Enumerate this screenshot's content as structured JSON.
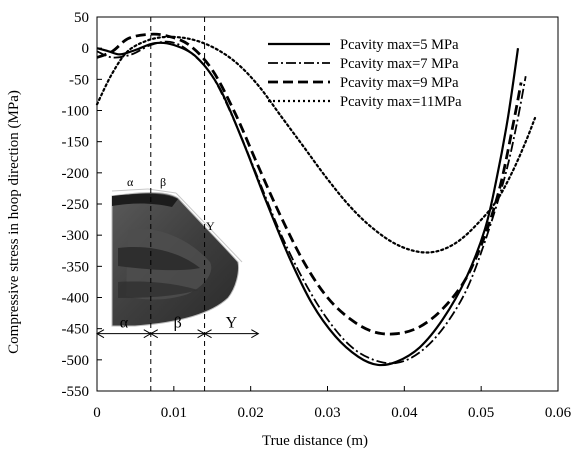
{
  "chart_data": {
    "type": "line",
    "xlabel": "True distance (m)",
    "ylabel": "Compressive stress in hoop direction (MPa)",
    "xlim": [
      0,
      0.06
    ],
    "ylim": [
      -550,
      50
    ],
    "x_ticks": [
      0,
      0.01,
      0.02,
      0.03,
      0.04,
      0.05,
      0.06
    ],
    "x_tick_labels": [
      "0",
      "0.01",
      "0.02",
      "0.03",
      "0.04",
      "0.05",
      "0.06"
    ],
    "y_ticks": [
      50,
      0,
      -50,
      -100,
      -150,
      -200,
      -250,
      -300,
      -350,
      -400,
      -450,
      -500,
      -550
    ],
    "y_tick_labels": [
      "50",
      "0",
      "-50",
      "-100",
      "-150",
      "-200",
      "-250",
      "-300",
      "-350",
      "-400",
      "-450",
      "-500",
      "-550"
    ],
    "grid": false,
    "legend_position": "top-right",
    "series": [
      {
        "name": "Pcavity max=5 MPa",
        "style": "solid",
        "points": [
          [
            0,
            0
          ],
          [
            0.0015,
            -5
          ],
          [
            0.003,
            -10
          ],
          [
            0.005,
            -3
          ],
          [
            0.0075,
            8
          ],
          [
            0.01,
            5
          ],
          [
            0.013,
            -15
          ],
          [
            0.016,
            -65
          ],
          [
            0.019,
            -150
          ],
          [
            0.022,
            -245
          ],
          [
            0.025,
            -335
          ],
          [
            0.028,
            -410
          ],
          [
            0.031,
            -462
          ],
          [
            0.034,
            -495
          ],
          [
            0.0365,
            -508
          ],
          [
            0.039,
            -503
          ],
          [
            0.042,
            -480
          ],
          [
            0.045,
            -435
          ],
          [
            0.048,
            -370
          ],
          [
            0.0505,
            -290
          ],
          [
            0.052,
            -210
          ],
          [
            0.0535,
            -110
          ],
          [
            0.0548,
            0
          ]
        ]
      },
      {
        "name": "Pcavity max=7 MPa",
        "style": "dash-dot",
        "points": [
          [
            0,
            -5
          ],
          [
            0.002,
            -15
          ],
          [
            0.0045,
            -10
          ],
          [
            0.007,
            5
          ],
          [
            0.0095,
            10
          ],
          [
            0.012,
            -5
          ],
          [
            0.015,
            -45
          ],
          [
            0.018,
            -120
          ],
          [
            0.021,
            -210
          ],
          [
            0.024,
            -300
          ],
          [
            0.027,
            -375
          ],
          [
            0.03,
            -435
          ],
          [
            0.033,
            -478
          ],
          [
            0.036,
            -500
          ],
          [
            0.039,
            -505
          ],
          [
            0.042,
            -488
          ],
          [
            0.045,
            -450
          ],
          [
            0.048,
            -390
          ],
          [
            0.0505,
            -310
          ],
          [
            0.053,
            -210
          ],
          [
            0.0545,
            -130
          ],
          [
            0.0558,
            -45
          ]
        ]
      },
      {
        "name": "Pcavity max=9 MPa",
        "style": "long-dash",
        "points": [
          [
            0,
            -15
          ],
          [
            0.002,
            -5
          ],
          [
            0.004,
            15
          ],
          [
            0.0065,
            22
          ],
          [
            0.009,
            20
          ],
          [
            0.012,
            5
          ],
          [
            0.015,
            -35
          ],
          [
            0.018,
            -105
          ],
          [
            0.021,
            -190
          ],
          [
            0.024,
            -272
          ],
          [
            0.027,
            -345
          ],
          [
            0.03,
            -400
          ],
          [
            0.033,
            -435
          ],
          [
            0.036,
            -455
          ],
          [
            0.039,
            -458
          ],
          [
            0.042,
            -447
          ],
          [
            0.045,
            -418
          ],
          [
            0.048,
            -370
          ],
          [
            0.0505,
            -300
          ],
          [
            0.0525,
            -220
          ],
          [
            0.0542,
            -120
          ],
          [
            0.0552,
            -55
          ]
        ]
      },
      {
        "name": "Pcavity max=11MPa",
        "style": "dotted",
        "points": [
          [
            0,
            -90
          ],
          [
            0.002,
            -40
          ],
          [
            0.004,
            -5
          ],
          [
            0.0065,
            12
          ],
          [
            0.009,
            18
          ],
          [
            0.012,
            15
          ],
          [
            0.015,
            2
          ],
          [
            0.018,
            -22
          ],
          [
            0.021,
            -60
          ],
          [
            0.024,
            -110
          ],
          [
            0.027,
            -160
          ],
          [
            0.03,
            -210
          ],
          [
            0.033,
            -255
          ],
          [
            0.036,
            -290
          ],
          [
            0.039,
            -315
          ],
          [
            0.042,
            -327
          ],
          [
            0.0445,
            -325
          ],
          [
            0.047,
            -310
          ],
          [
            0.0495,
            -282
          ],
          [
            0.052,
            -245
          ],
          [
            0.054,
            -200
          ],
          [
            0.0558,
            -150
          ],
          [
            0.057,
            -112
          ]
        ]
      }
    ],
    "vertical_lines": [
      0.007,
      0.014
    ],
    "region_labels": [
      {
        "text": "α",
        "x_start": 0,
        "x_end": 0.007
      },
      {
        "text": "β",
        "x_start": 0.007,
        "x_end": 0.014
      },
      {
        "text": "Y",
        "x_start": 0.014,
        "x_end": 0.021
      }
    ],
    "region_arrow_y": -458,
    "inset_labels": [
      "α",
      "β",
      "Y"
    ]
  }
}
